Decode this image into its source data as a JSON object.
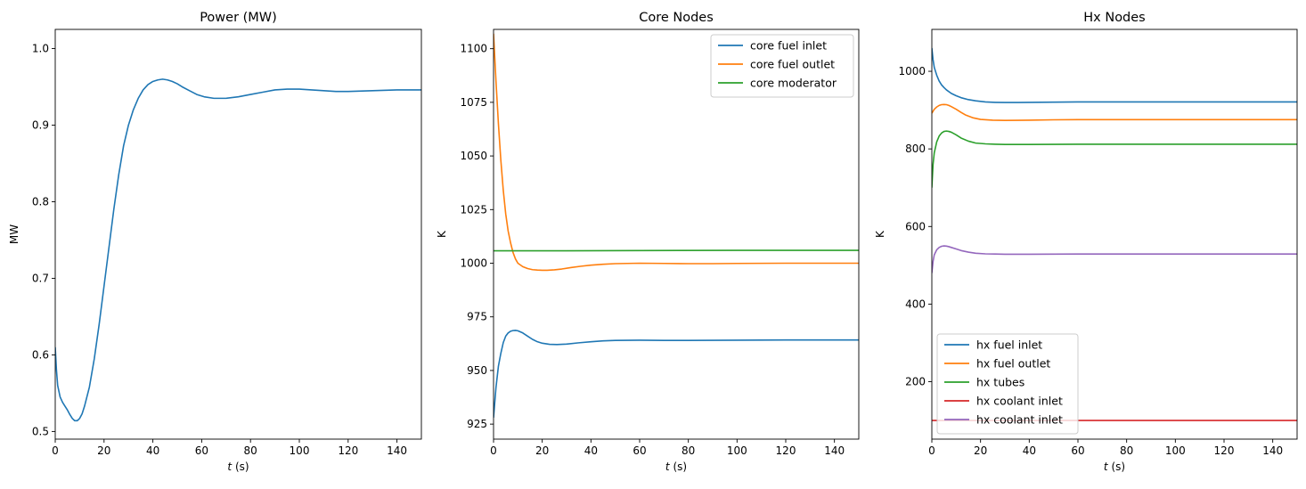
{
  "chart_data": [
    {
      "type": "line",
      "title": "Power (MW)",
      "xlabel_var": "t",
      "xlabel_unit": "(s)",
      "ylabel": "MW",
      "xlim": [
        0,
        150
      ],
      "ylim": [
        0.49,
        1.025
      ],
      "xticks": [
        0,
        20,
        40,
        60,
        80,
        100,
        120,
        140
      ],
      "yticks": [
        0.5,
        0.6,
        0.7,
        0.8,
        0.9,
        1.0
      ],
      "ytick_labels": [
        "0.5",
        "0.6",
        "0.7",
        "0.8",
        "0.9",
        "1.0"
      ],
      "legend": null,
      "series": [
        {
          "color": "#1f77b4",
          "points": [
            [
              0,
              0.61
            ],
            [
              0.5,
              0.58
            ],
            [
              1,
              0.56
            ],
            [
              2,
              0.545
            ],
            [
              3,
              0.538
            ],
            [
              4,
              0.533
            ],
            [
              5,
              0.528
            ],
            [
              6,
              0.522
            ],
            [
              7,
              0.517
            ],
            [
              8,
              0.514
            ],
            [
              9,
              0.514
            ],
            [
              10,
              0.517
            ],
            [
              11,
              0.523
            ],
            [
              12,
              0.533
            ],
            [
              14,
              0.558
            ],
            [
              16,
              0.595
            ],
            [
              18,
              0.64
            ],
            [
              20,
              0.69
            ],
            [
              22,
              0.74
            ],
            [
              24,
              0.79
            ],
            [
              26,
              0.835
            ],
            [
              28,
              0.873
            ],
            [
              30,
              0.9
            ],
            [
              32,
              0.92
            ],
            [
              34,
              0.935
            ],
            [
              36,
              0.946
            ],
            [
              38,
              0.953
            ],
            [
              40,
              0.957
            ],
            [
              42,
              0.959
            ],
            [
              44,
              0.96
            ],
            [
              46,
              0.959
            ],
            [
              48,
              0.957
            ],
            [
              50,
              0.954
            ],
            [
              52,
              0.95
            ],
            [
              55,
              0.945
            ],
            [
              58,
              0.94
            ],
            [
              61,
              0.937
            ],
            [
              65,
              0.935
            ],
            [
              70,
              0.935
            ],
            [
              75,
              0.937
            ],
            [
              80,
              0.94
            ],
            [
              85,
              0.943
            ],
            [
              90,
              0.946
            ],
            [
              95,
              0.947
            ],
            [
              100,
              0.947
            ],
            [
              105,
              0.946
            ],
            [
              110,
              0.945
            ],
            [
              115,
              0.944
            ],
            [
              120,
              0.944
            ],
            [
              130,
              0.945
            ],
            [
              140,
              0.946
            ],
            [
              150,
              0.946
            ]
          ]
        }
      ]
    },
    {
      "type": "line",
      "title": "Core Nodes",
      "xlabel_var": "t",
      "xlabel_unit": "(s)",
      "ylabel": "K",
      "xlim": [
        0,
        150
      ],
      "ylim": [
        918,
        1109
      ],
      "xticks": [
        0,
        20,
        40,
        60,
        80,
        100,
        120,
        140
      ],
      "yticks": [
        925,
        950,
        975,
        1000,
        1025,
        1050,
        1075,
        1100
      ],
      "ytick_labels": [
        "925",
        "950",
        "975",
        "1000",
        "1025",
        "1050",
        "1075",
        "1100"
      ],
      "legend": "top-right",
      "series": [
        {
          "name": "core fuel inlet",
          "color": "#1f77b4",
          "points": [
            [
              0,
              928
            ],
            [
              1,
              942
            ],
            [
              2,
              952
            ],
            [
              3,
              958
            ],
            [
              4,
              963
            ],
            [
              5,
              966
            ],
            [
              6,
              967.5
            ],
            [
              7,
              968.3
            ],
            [
              8,
              968.6
            ],
            [
              9,
              968.7
            ],
            [
              10,
              968.5
            ],
            [
              12,
              967.5
            ],
            [
              14,
              966
            ],
            [
              16,
              964.5
            ],
            [
              18,
              963.4
            ],
            [
              20,
              962.7
            ],
            [
              23,
              962.2
            ],
            [
              26,
              962.1
            ],
            [
              30,
              962.3
            ],
            [
              35,
              962.9
            ],
            [
              40,
              963.4
            ],
            [
              45,
              963.8
            ],
            [
              50,
              964
            ],
            [
              60,
              964.1
            ],
            [
              70,
              964
            ],
            [
              80,
              964
            ],
            [
              100,
              964.1
            ],
            [
              120,
              964.2
            ],
            [
              150,
              964.2
            ]
          ]
        },
        {
          "name": "core fuel outlet",
          "color": "#ff7f0e",
          "points": [
            [
              0,
              1107
            ],
            [
              1,
              1085
            ],
            [
              2,
              1065
            ],
            [
              3,
              1048
            ],
            [
              4,
              1034
            ],
            [
              5,
              1023
            ],
            [
              6,
              1015
            ],
            [
              7,
              1009.5
            ],
            [
              8,
              1005
            ],
            [
              9,
              1002
            ],
            [
              10,
              1000
            ],
            [
              12,
              998.4
            ],
            [
              14,
              997.5
            ],
            [
              16,
              997
            ],
            [
              18,
              996.8
            ],
            [
              20,
              996.7
            ],
            [
              22,
              996.7
            ],
            [
              25,
              996.9
            ],
            [
              28,
              997.3
            ],
            [
              32,
              998
            ],
            [
              36,
              998.6
            ],
            [
              40,
              999.1
            ],
            [
              45,
              999.5
            ],
            [
              50,
              999.8
            ],
            [
              55,
              999.9
            ],
            [
              60,
              1000
            ],
            [
              70,
              999.9
            ],
            [
              80,
              999.8
            ],
            [
              90,
              999.8
            ],
            [
              100,
              999.9
            ],
            [
              120,
              1000
            ],
            [
              150,
              1000
            ]
          ]
        },
        {
          "name": "core moderator",
          "color": "#2ca02c",
          "points": [
            [
              0,
              1005.8
            ],
            [
              30,
              1005.8
            ],
            [
              60,
              1005.9
            ],
            [
              100,
              1006
            ],
            [
              150,
              1006
            ]
          ]
        }
      ]
    },
    {
      "type": "line",
      "title": "Hx Nodes",
      "xlabel_var": "t",
      "xlabel_unit": "(s)",
      "ylabel": "K",
      "xlim": [
        0,
        150
      ],
      "ylim": [
        52,
        1108
      ],
      "xticks": [
        0,
        20,
        40,
        60,
        80,
        100,
        120,
        140
      ],
      "yticks": [
        200,
        400,
        600,
        800,
        1000
      ],
      "ytick_labels": [
        "200",
        "400",
        "600",
        "800",
        "1000"
      ],
      "legend": "bottom-left",
      "series": [
        {
          "name": "hx fuel inlet",
          "color": "#1f77b4",
          "points": [
            [
              0,
              1060
            ],
            [
              0.5,
              1030
            ],
            [
              1,
              1010
            ],
            [
              2,
              990
            ],
            [
              3,
              975
            ],
            [
              4,
              965
            ],
            [
              5,
              958
            ],
            [
              6,
              952
            ],
            [
              8,
              943
            ],
            [
              10,
              937
            ],
            [
              12,
              932
            ],
            [
              15,
              927
            ],
            [
              18,
              924
            ],
            [
              22,
              921
            ],
            [
              26,
              920
            ],
            [
              30,
              919.5
            ],
            [
              35,
              919.5
            ],
            [
              40,
              920
            ],
            [
              50,
              920.5
            ],
            [
              60,
              921
            ],
            [
              80,
              921
            ],
            [
              100,
              921
            ],
            [
              150,
              921
            ]
          ]
        },
        {
          "name": "hx fuel outlet",
          "color": "#ff7f0e",
          "points": [
            [
              0,
              892
            ],
            [
              1,
              902
            ],
            [
              2,
              908
            ],
            [
              3,
              912
            ],
            [
              4,
              914
            ],
            [
              5,
              914.5
            ],
            [
              6,
              914
            ],
            [
              7,
              912
            ],
            [
              8,
              909
            ],
            [
              10,
              902
            ],
            [
              12,
              894
            ],
            [
              14,
              887
            ],
            [
              17,
              880
            ],
            [
              20,
              876
            ],
            [
              25,
              874
            ],
            [
              30,
              873.5
            ],
            [
              40,
              874
            ],
            [
              50,
              875
            ],
            [
              60,
              875.5
            ],
            [
              80,
              875.5
            ],
            [
              100,
              875.5
            ],
            [
              150,
              875.5
            ]
          ]
        },
        {
          "name": "hx tubes",
          "color": "#2ca02c",
          "points": [
            [
              0,
              700
            ],
            [
              0.5,
              760
            ],
            [
              1,
              790
            ],
            [
              2,
              818
            ],
            [
              3,
              833
            ],
            [
              4,
              841
            ],
            [
              5,
              845
            ],
            [
              6,
              846
            ],
            [
              7,
              845
            ],
            [
              8,
              843
            ],
            [
              10,
              836
            ],
            [
              12,
              828
            ],
            [
              15,
              820
            ],
            [
              18,
              815
            ],
            [
              22,
              813
            ],
            [
              26,
              812
            ],
            [
              30,
              811.5
            ],
            [
              40,
              811.5
            ],
            [
              60,
              812
            ],
            [
              100,
              812
            ],
            [
              150,
              812
            ]
          ]
        },
        {
          "name": "hx coolant inlet",
          "color": "#d62728",
          "points": [
            [
              0,
              100
            ],
            [
              150,
              100
            ]
          ]
        },
        {
          "name": "hx coolant inlet",
          "color": "#9467bd",
          "points": [
            [
              0,
              480
            ],
            [
              0.5,
              510
            ],
            [
              1,
              527
            ],
            [
              2,
              540
            ],
            [
              3,
              546
            ],
            [
              4,
              549
            ],
            [
              5,
              550
            ],
            [
              6,
              549.5
            ],
            [
              7,
              548
            ],
            [
              8,
              546
            ],
            [
              10,
              542
            ],
            [
              12,
              538
            ],
            [
              15,
              534
            ],
            [
              18,
              531
            ],
            [
              22,
              529.5
            ],
            [
              26,
              529
            ],
            [
              30,
              528.5
            ],
            [
              40,
              528.5
            ],
            [
              60,
              529
            ],
            [
              100,
              529
            ],
            [
              150,
              529
            ]
          ]
        }
      ]
    }
  ]
}
